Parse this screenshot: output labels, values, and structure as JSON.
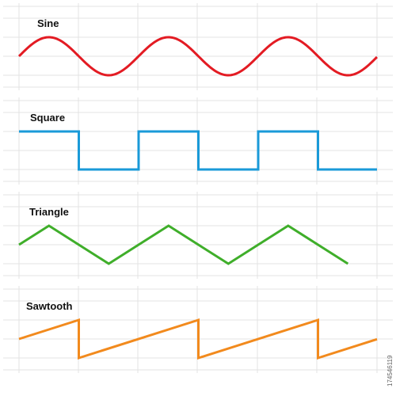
{
  "waveforms": [
    {
      "id": "sine",
      "label": "Sine",
      "color": "#e31b23",
      "type": "sine"
    },
    {
      "id": "square",
      "label": "Square",
      "color": "#1a9ad8",
      "type": "square"
    },
    {
      "id": "triangle",
      "label": "Triangle",
      "color": "#3fae2a",
      "type": "triangle"
    },
    {
      "id": "sawtooth",
      "label": "Sawtooth",
      "color": "#f28a1d",
      "type": "sawtooth"
    }
  ],
  "stock_id": "174546119"
}
